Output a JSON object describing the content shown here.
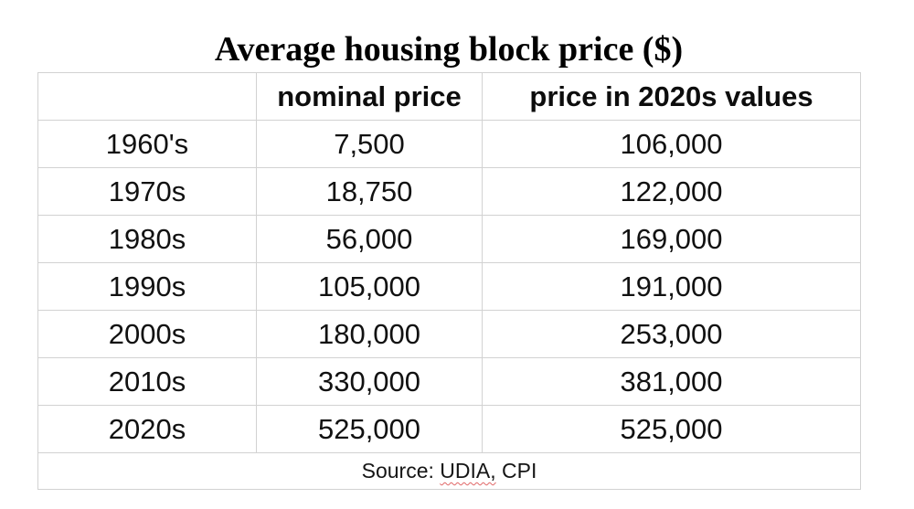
{
  "page": {
    "title": "Average housing block price ($)"
  },
  "colors": {
    "background": "#ffffff",
    "text": "#111111",
    "table_border": "#d2d2d2",
    "spellcheck_underline": "#e06666"
  },
  "chart_data": {
    "type": "table",
    "title": "Average housing block price ($)",
    "columns": [
      "",
      "nominal price",
      "price in 2020s values"
    ],
    "rows": [
      {
        "decade": "1960's",
        "nominal": "7,500",
        "adjusted": "106,000"
      },
      {
        "decade": "1970s",
        "nominal": "18,750",
        "adjusted": "122,000"
      },
      {
        "decade": "1980s",
        "nominal": "56,000",
        "adjusted": "169,000"
      },
      {
        "decade": "1990s",
        "nominal": "105,000",
        "adjusted": "191,000"
      },
      {
        "decade": "2000s",
        "nominal": "180,000",
        "adjusted": "253,000"
      },
      {
        "decade": "2010s",
        "nominal": "330,000",
        "adjusted": "381,000"
      },
      {
        "decade": "2020s",
        "nominal": "525,000",
        "adjusted": "525,000"
      }
    ],
    "numeric": {
      "decades": [
        "1960s",
        "1970s",
        "1980s",
        "1990s",
        "2000s",
        "2010s",
        "2020s"
      ],
      "nominal_price": [
        7500,
        18750,
        56000,
        105000,
        180000,
        330000,
        525000
      ],
      "price_in_2020s_values": [
        106000,
        122000,
        169000,
        191000,
        253000,
        381000,
        525000
      ]
    },
    "source_note": {
      "prefix": "Source: ",
      "misspelled_word": "UDIA,",
      "suffix": " CPI"
    },
    "layout_hints": {
      "grid": "light-gray full grid",
      "header_bold": true,
      "all_cells_centered": true,
      "source_row_spans_all_columns": true
    }
  }
}
